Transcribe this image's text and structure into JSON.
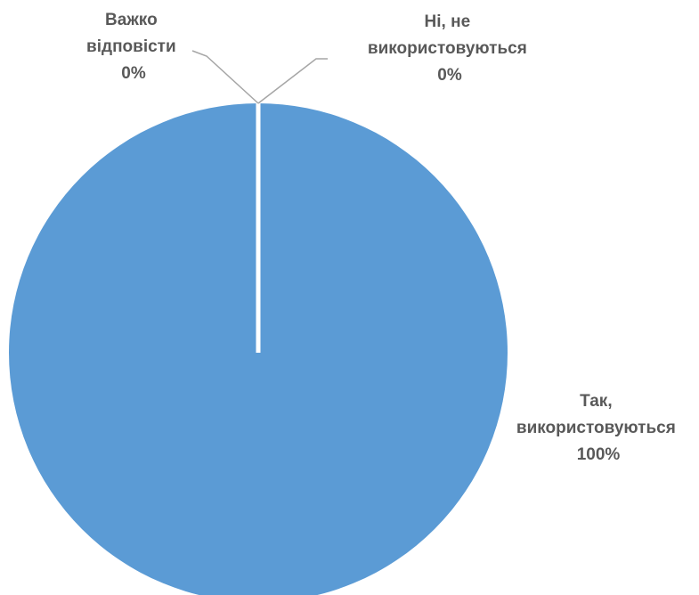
{
  "chart_data": {
    "type": "pie",
    "slices": [
      {
        "name_lines": [
          "Так,",
          "використовуються"
        ],
        "value": 100,
        "label": "100%",
        "color": "#5b9bd5"
      },
      {
        "name_lines": [
          "Ні, не",
          "використовуються"
        ],
        "value": 0,
        "label": "0%",
        "color": "#ed7d31"
      },
      {
        "name_lines": [
          "Важко",
          "відповісти"
        ],
        "value": 0,
        "label": "0%",
        "color": "#a5a5a5"
      }
    ],
    "legend": "none",
    "data_labels": "outside-with-leader-lines"
  }
}
